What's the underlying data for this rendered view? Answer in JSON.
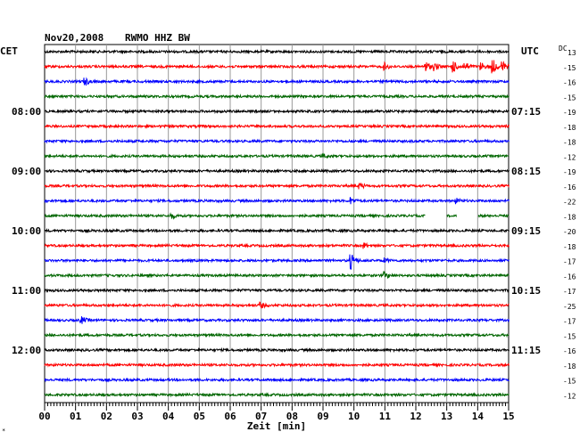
{
  "header": {
    "date": "Nov20,2008",
    "station": "RWMO HHZ BW",
    "left_zone": "CET",
    "right_zone": "UTC",
    "dc_label": "DC"
  },
  "chart_data": {
    "type": "line",
    "xlabel": "Zeit [min]",
    "xlim": [
      0,
      15
    ],
    "x_ticks": [
      "00",
      "01",
      "02",
      "03",
      "04",
      "05",
      "06",
      "07",
      "08",
      "09",
      "10",
      "11",
      "12",
      "13",
      "14",
      "15"
    ],
    "trace_colors": [
      "#000000",
      "#ff0000",
      "#0000ff",
      "#006600"
    ],
    "left_hour_labels": [
      {
        "trace": 4,
        "label": "08:00"
      },
      {
        "trace": 8,
        "label": "09:00"
      },
      {
        "trace": 12,
        "label": "10:00"
      },
      {
        "trace": 16,
        "label": "11:00"
      },
      {
        "trace": 20,
        "label": "12:00"
      }
    ],
    "right_hour_labels": [
      {
        "trace": 4,
        "label": "07:15"
      },
      {
        "trace": 8,
        "label": "08:15"
      },
      {
        "trace": 12,
        "label": "09:15"
      },
      {
        "trace": 16,
        "label": "10:15"
      },
      {
        "trace": 20,
        "label": "11:15"
      }
    ],
    "dc_offsets": [
      "13",
      "-15",
      "-16",
      "-15",
      "-19",
      "-18",
      "-18",
      "-12",
      "-19",
      "-16",
      "-22",
      "-18",
      "-20",
      "-18",
      "-17",
      "-16",
      "-17",
      "-25",
      "-17",
      "-15",
      "-16",
      "-18",
      "-15",
      "-12"
    ],
    "traces": [
      {
        "index": 0,
        "events": []
      },
      {
        "index": 1,
        "events": [
          {
            "t": 11.0,
            "amp": 0.5
          },
          {
            "t": 12.3,
            "amp": 1.0
          },
          {
            "t": 12.6,
            "amp": 0.7
          },
          {
            "t": 13.2,
            "amp": 1.0
          },
          {
            "t": 13.6,
            "amp": 0.7
          },
          {
            "t": 14.1,
            "amp": 0.6
          },
          {
            "t": 14.5,
            "amp": 1.0
          },
          {
            "t": 14.8,
            "amp": 0.8
          }
        ]
      },
      {
        "index": 2,
        "events": [
          {
            "t": 1.3,
            "amp": 0.6
          }
        ]
      },
      {
        "index": 3,
        "events": []
      },
      {
        "index": 4,
        "events": []
      },
      {
        "index": 5,
        "events": []
      },
      {
        "index": 6,
        "events": []
      },
      {
        "index": 7,
        "events": [
          {
            "t": 9.0,
            "amp": 0.3
          }
        ]
      },
      {
        "index": 8,
        "events": []
      },
      {
        "index": 9,
        "events": [
          {
            "t": 10.2,
            "amp": 0.4
          }
        ]
      },
      {
        "index": 10,
        "events": [
          {
            "t": 9.9,
            "amp": 0.5
          },
          {
            "t": 13.3,
            "amp": 0.4
          }
        ]
      },
      {
        "index": 11,
        "events": [
          {
            "t": 4.1,
            "amp": 0.4
          }
        ],
        "gaps": [
          [
            12.3,
            13.0
          ],
          [
            13.3,
            14.0
          ]
        ]
      },
      {
        "index": 12,
        "events": []
      },
      {
        "index": 13,
        "events": [
          {
            "t": 10.3,
            "amp": 0.5
          }
        ]
      },
      {
        "index": 14,
        "events": [
          {
            "t": 9.9,
            "amp": 1.2
          },
          {
            "t": 11.0,
            "amp": 0.3
          }
        ]
      },
      {
        "index": 15,
        "events": [
          {
            "t": 11.0,
            "amp": 0.5
          }
        ]
      },
      {
        "index": 16,
        "events": []
      },
      {
        "index": 17,
        "events": [
          {
            "t": 7.0,
            "amp": 0.4
          }
        ]
      },
      {
        "index": 18,
        "events": [
          {
            "t": 1.2,
            "amp": 0.5
          }
        ]
      },
      {
        "index": 19,
        "events": []
      },
      {
        "index": 20,
        "events": []
      },
      {
        "index": 21,
        "events": []
      },
      {
        "index": 22,
        "events": []
      },
      {
        "index": 23,
        "events": []
      }
    ]
  }
}
